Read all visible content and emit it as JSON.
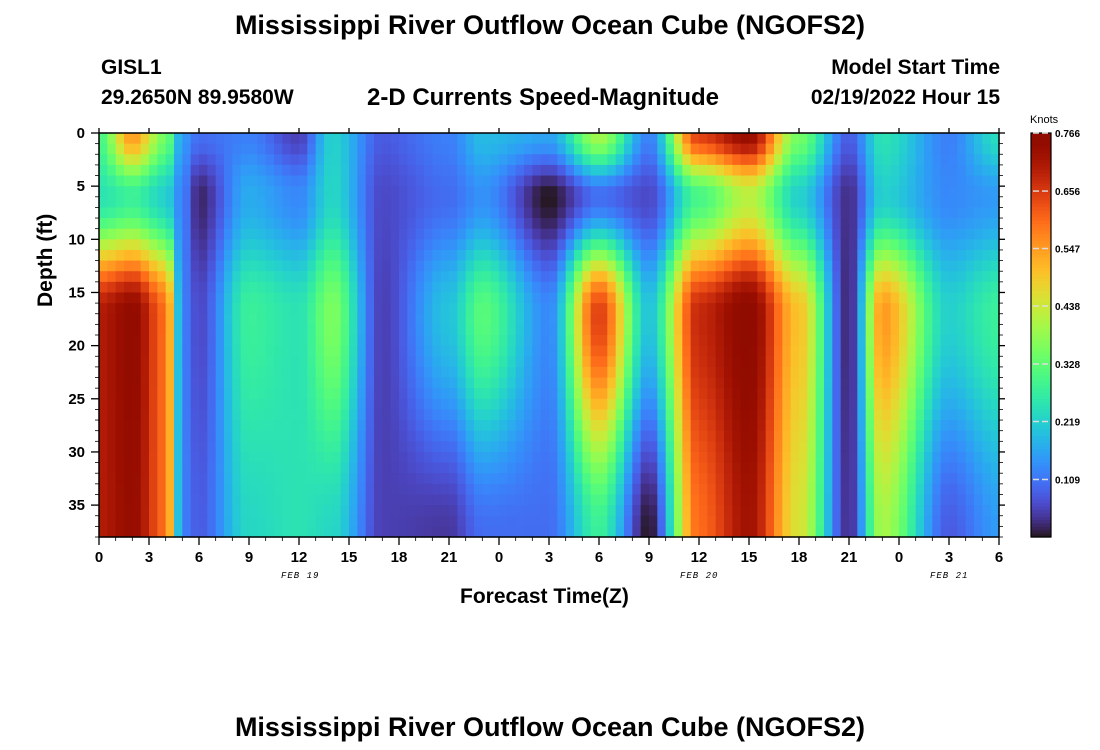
{
  "header": {
    "title": "Mississippi River Outflow Ocean Cube (NGOFS2)",
    "station": "GISL1",
    "coords": "29.2650N  89.9580W",
    "subtitle": "2-D Currents Speed-Magnitude",
    "model_start_label": "Model Start Time",
    "model_start_value": "02/19/2022 Hour 15"
  },
  "footer": {
    "title": "Mississippi River Outflow Ocean Cube (NGOFS2)"
  },
  "chart_data": {
    "type": "heatmap",
    "xlabel": "Forecast Time(Z)",
    "ylabel": "Depth (ft)",
    "x_tick_labels": [
      "0",
      "3",
      "6",
      "9",
      "12",
      "15",
      "18",
      "21",
      "0",
      "3",
      "6",
      "9",
      "12",
      "15",
      "18",
      "21",
      "0",
      "3",
      "6"
    ],
    "x_range_hours": [
      0,
      54
    ],
    "day_labels": [
      {
        "label": "FEB 19",
        "hour": 12
      },
      {
        "label": "FEB 20",
        "hour": 36
      },
      {
        "label": "FEB 21",
        "hour": 51
      }
    ],
    "y_tick_labels": [
      "0",
      "5",
      "10",
      "15",
      "20",
      "25",
      "30",
      "35"
    ],
    "ylim": [
      0,
      38
    ],
    "y_inverted": true,
    "colorbar": {
      "unit": "Knots",
      "min": 0,
      "max": 0.766,
      "tick_labels": [
        "0.766",
        "0.656",
        "0.547",
        "0.438",
        "0.328",
        "0.219",
        "0.109"
      ],
      "colormap": "turbo"
    },
    "speed_columns_knots": [
      {
        "hour": 0,
        "surface": 0.3,
        "mid": 0.25,
        "deep": 0.7,
        "bottom": 0.7
      },
      {
        "hour": 2,
        "surface": 0.55,
        "mid": 0.28,
        "deep": 0.75,
        "bottom": 0.74
      },
      {
        "hour": 4,
        "surface": 0.35,
        "mid": 0.22,
        "deep": 0.6,
        "bottom": 0.6
      },
      {
        "hour": 5,
        "surface": 0.15,
        "mid": 0.12,
        "deep": 0.12,
        "bottom": 0.12
      },
      {
        "hour": 6,
        "surface": 0.1,
        "mid": 0.02,
        "deep": 0.06,
        "bottom": 0.08
      },
      {
        "hour": 9,
        "surface": 0.12,
        "mid": 0.17,
        "deep": 0.28,
        "bottom": 0.23
      },
      {
        "hour": 12,
        "surface": 0.05,
        "mid": 0.13,
        "deep": 0.25,
        "bottom": 0.25
      },
      {
        "hour": 14,
        "surface": 0.22,
        "mid": 0.23,
        "deep": 0.36,
        "bottom": 0.23
      },
      {
        "hour": 17,
        "surface": 0.08,
        "mid": 0.06,
        "deep": 0.05,
        "bottom": 0.05
      },
      {
        "hour": 21,
        "surface": 0.12,
        "mid": 0.1,
        "deep": 0.2,
        "bottom": 0.04
      },
      {
        "hour": 23,
        "surface": 0.19,
        "mid": 0.14,
        "deep": 0.32,
        "bottom": 0.1
      },
      {
        "hour": 27,
        "surface": 0.16,
        "mid": 0.0,
        "deep": 0.13,
        "bottom": 0.1
      },
      {
        "hour": 30,
        "surface": 0.4,
        "mid": 0.1,
        "deep": 0.65,
        "bottom": 0.28
      },
      {
        "hour": 33,
        "surface": 0.12,
        "mid": 0.06,
        "deep": 0.2,
        "bottom": 0.0
      },
      {
        "hour": 36,
        "surface": 0.65,
        "mid": 0.3,
        "deep": 0.68,
        "bottom": 0.6
      },
      {
        "hour": 39,
        "surface": 0.74,
        "mid": 0.42,
        "deep": 0.76,
        "bottom": 0.72
      },
      {
        "hour": 42,
        "surface": 0.35,
        "mid": 0.22,
        "deep": 0.5,
        "bottom": 0.45
      },
      {
        "hour": 45,
        "surface": 0.08,
        "mid": 0.03,
        "deep": 0.02,
        "bottom": 0.03
      },
      {
        "hour": 47,
        "surface": 0.25,
        "mid": 0.22,
        "deep": 0.55,
        "bottom": 0.4
      },
      {
        "hour": 51,
        "surface": 0.12,
        "mid": 0.13,
        "deep": 0.22,
        "bottom": 0.08
      },
      {
        "hour": 54,
        "surface": 0.24,
        "mid": 0.15,
        "deep": 0.28,
        "bottom": 0.15
      }
    ]
  }
}
